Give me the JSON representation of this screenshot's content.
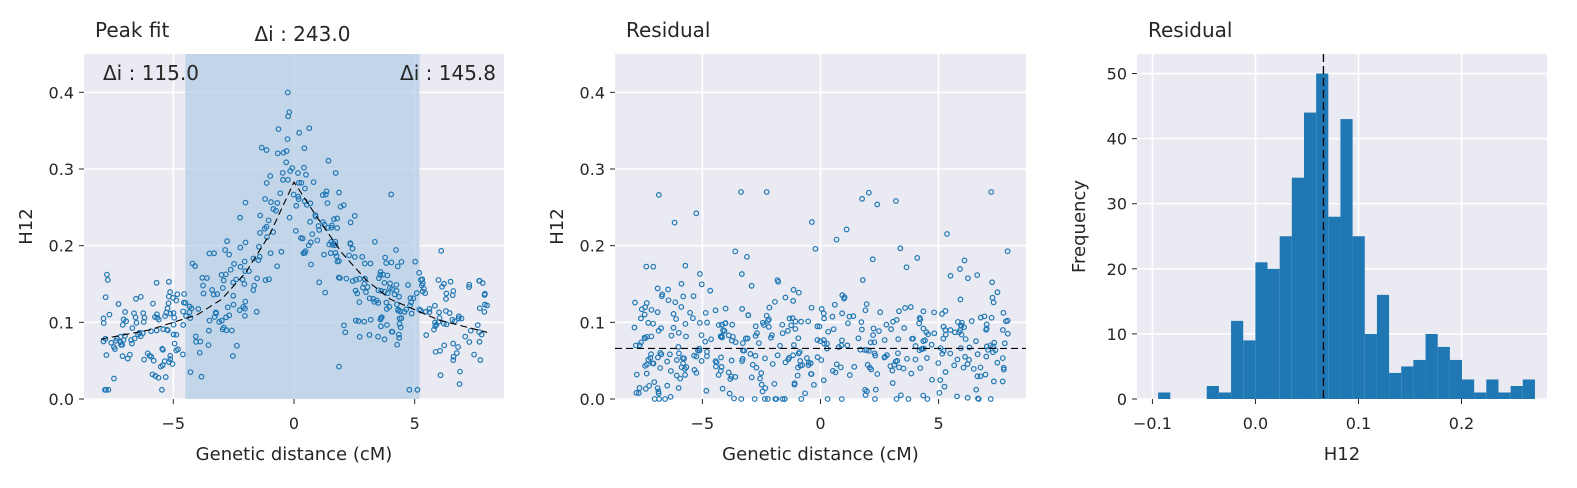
{
  "chart_data": [
    {
      "type": "scatter",
      "title": "Peak fit",
      "xlabel": "Genetic distance (cM)",
      "ylabel": "H12",
      "xlim": [
        -8.7,
        8.7
      ],
      "ylim": [
        0,
        0.45
      ],
      "xticks": [
        -5,
        0,
        5
      ],
      "yticks": [
        0.0,
        0.1,
        0.2,
        0.3,
        0.4
      ],
      "xtick_labels": [
        "−5",
        "0",
        "5"
      ],
      "ytick_labels": [
        "0.0",
        "0.1",
        "0.2",
        "0.3",
        "0.4"
      ],
      "grid": true,
      "shaded_region": [
        -4.5,
        5.2
      ],
      "annotations": [
        {
          "text": "Δi : 243.0",
          "position": "top-center"
        },
        {
          "text": "Δi : 115.0",
          "position": "top-left"
        },
        {
          "text": "Δi : 145.8",
          "position": "top-right"
        }
      ],
      "fit_line": {
        "style": "dashed",
        "x": [
          -8,
          -6,
          -4,
          -3,
          -2,
          -1,
          0,
          1,
          2,
          3,
          4,
          6,
          8
        ],
        "y": [
          0.078,
          0.09,
          0.11,
          0.13,
          0.165,
          0.215,
          0.283,
          0.235,
          0.19,
          0.155,
          0.13,
          0.103,
          0.087
        ]
      },
      "series_generator": {
        "n": 450,
        "seed": 7,
        "marker": "open-circle"
      }
    },
    {
      "type": "scatter",
      "title": "Residual",
      "xlabel": "Genetic distance (cM)",
      "ylabel": "H12",
      "xlim": [
        -8.7,
        8.7
      ],
      "ylim": [
        0,
        0.45
      ],
      "xticks": [
        -5,
        0,
        5
      ],
      "yticks": [
        0.0,
        0.1,
        0.2,
        0.3,
        0.4
      ],
      "xtick_labels": [
        "−5",
        "0",
        "5"
      ],
      "ytick_labels": [
        "0.0",
        "0.1",
        "0.2",
        "0.3",
        "0.4"
      ],
      "grid": true,
      "hline": {
        "y": 0.066,
        "style": "dashed"
      },
      "series_generator": {
        "n": 450,
        "seed": 13,
        "marker": "open-circle"
      }
    },
    {
      "type": "bar",
      "subtype": "histogram",
      "title": "Residual",
      "xlabel": "H12",
      "ylabel": "Frequency",
      "xlim": [
        -0.115,
        0.283
      ],
      "ylim": [
        0,
        53
      ],
      "xticks": [
        -0.1,
        0.0,
        0.1,
        0.2
      ],
      "yticks": [
        0,
        10,
        20,
        30,
        40,
        50
      ],
      "xtick_labels": [
        "−0.1",
        "0.0",
        "0.1",
        "0.2"
      ],
      "ytick_labels": [
        "0",
        "10",
        "20",
        "30",
        "40",
        "50"
      ],
      "grid": true,
      "bin_start": -0.0945,
      "bin_width": 0.0118,
      "counts": [
        1,
        0,
        0,
        0,
        2,
        1,
        12,
        9,
        21,
        20,
        25,
        34,
        44,
        50,
        28,
        43,
        25,
        10,
        16,
        4,
        5,
        6,
        10,
        8,
        6,
        3,
        1,
        3,
        1,
        2,
        3
      ],
      "vline": {
        "x": 0.066,
        "style": "dashed"
      }
    }
  ],
  "colors": {
    "background": "#eaeaf2",
    "grid": "#ffffff",
    "marker": "#1f77b4",
    "bar": "#1f77b4",
    "shade": "#b5cde4",
    "reference_line": "#000000"
  }
}
